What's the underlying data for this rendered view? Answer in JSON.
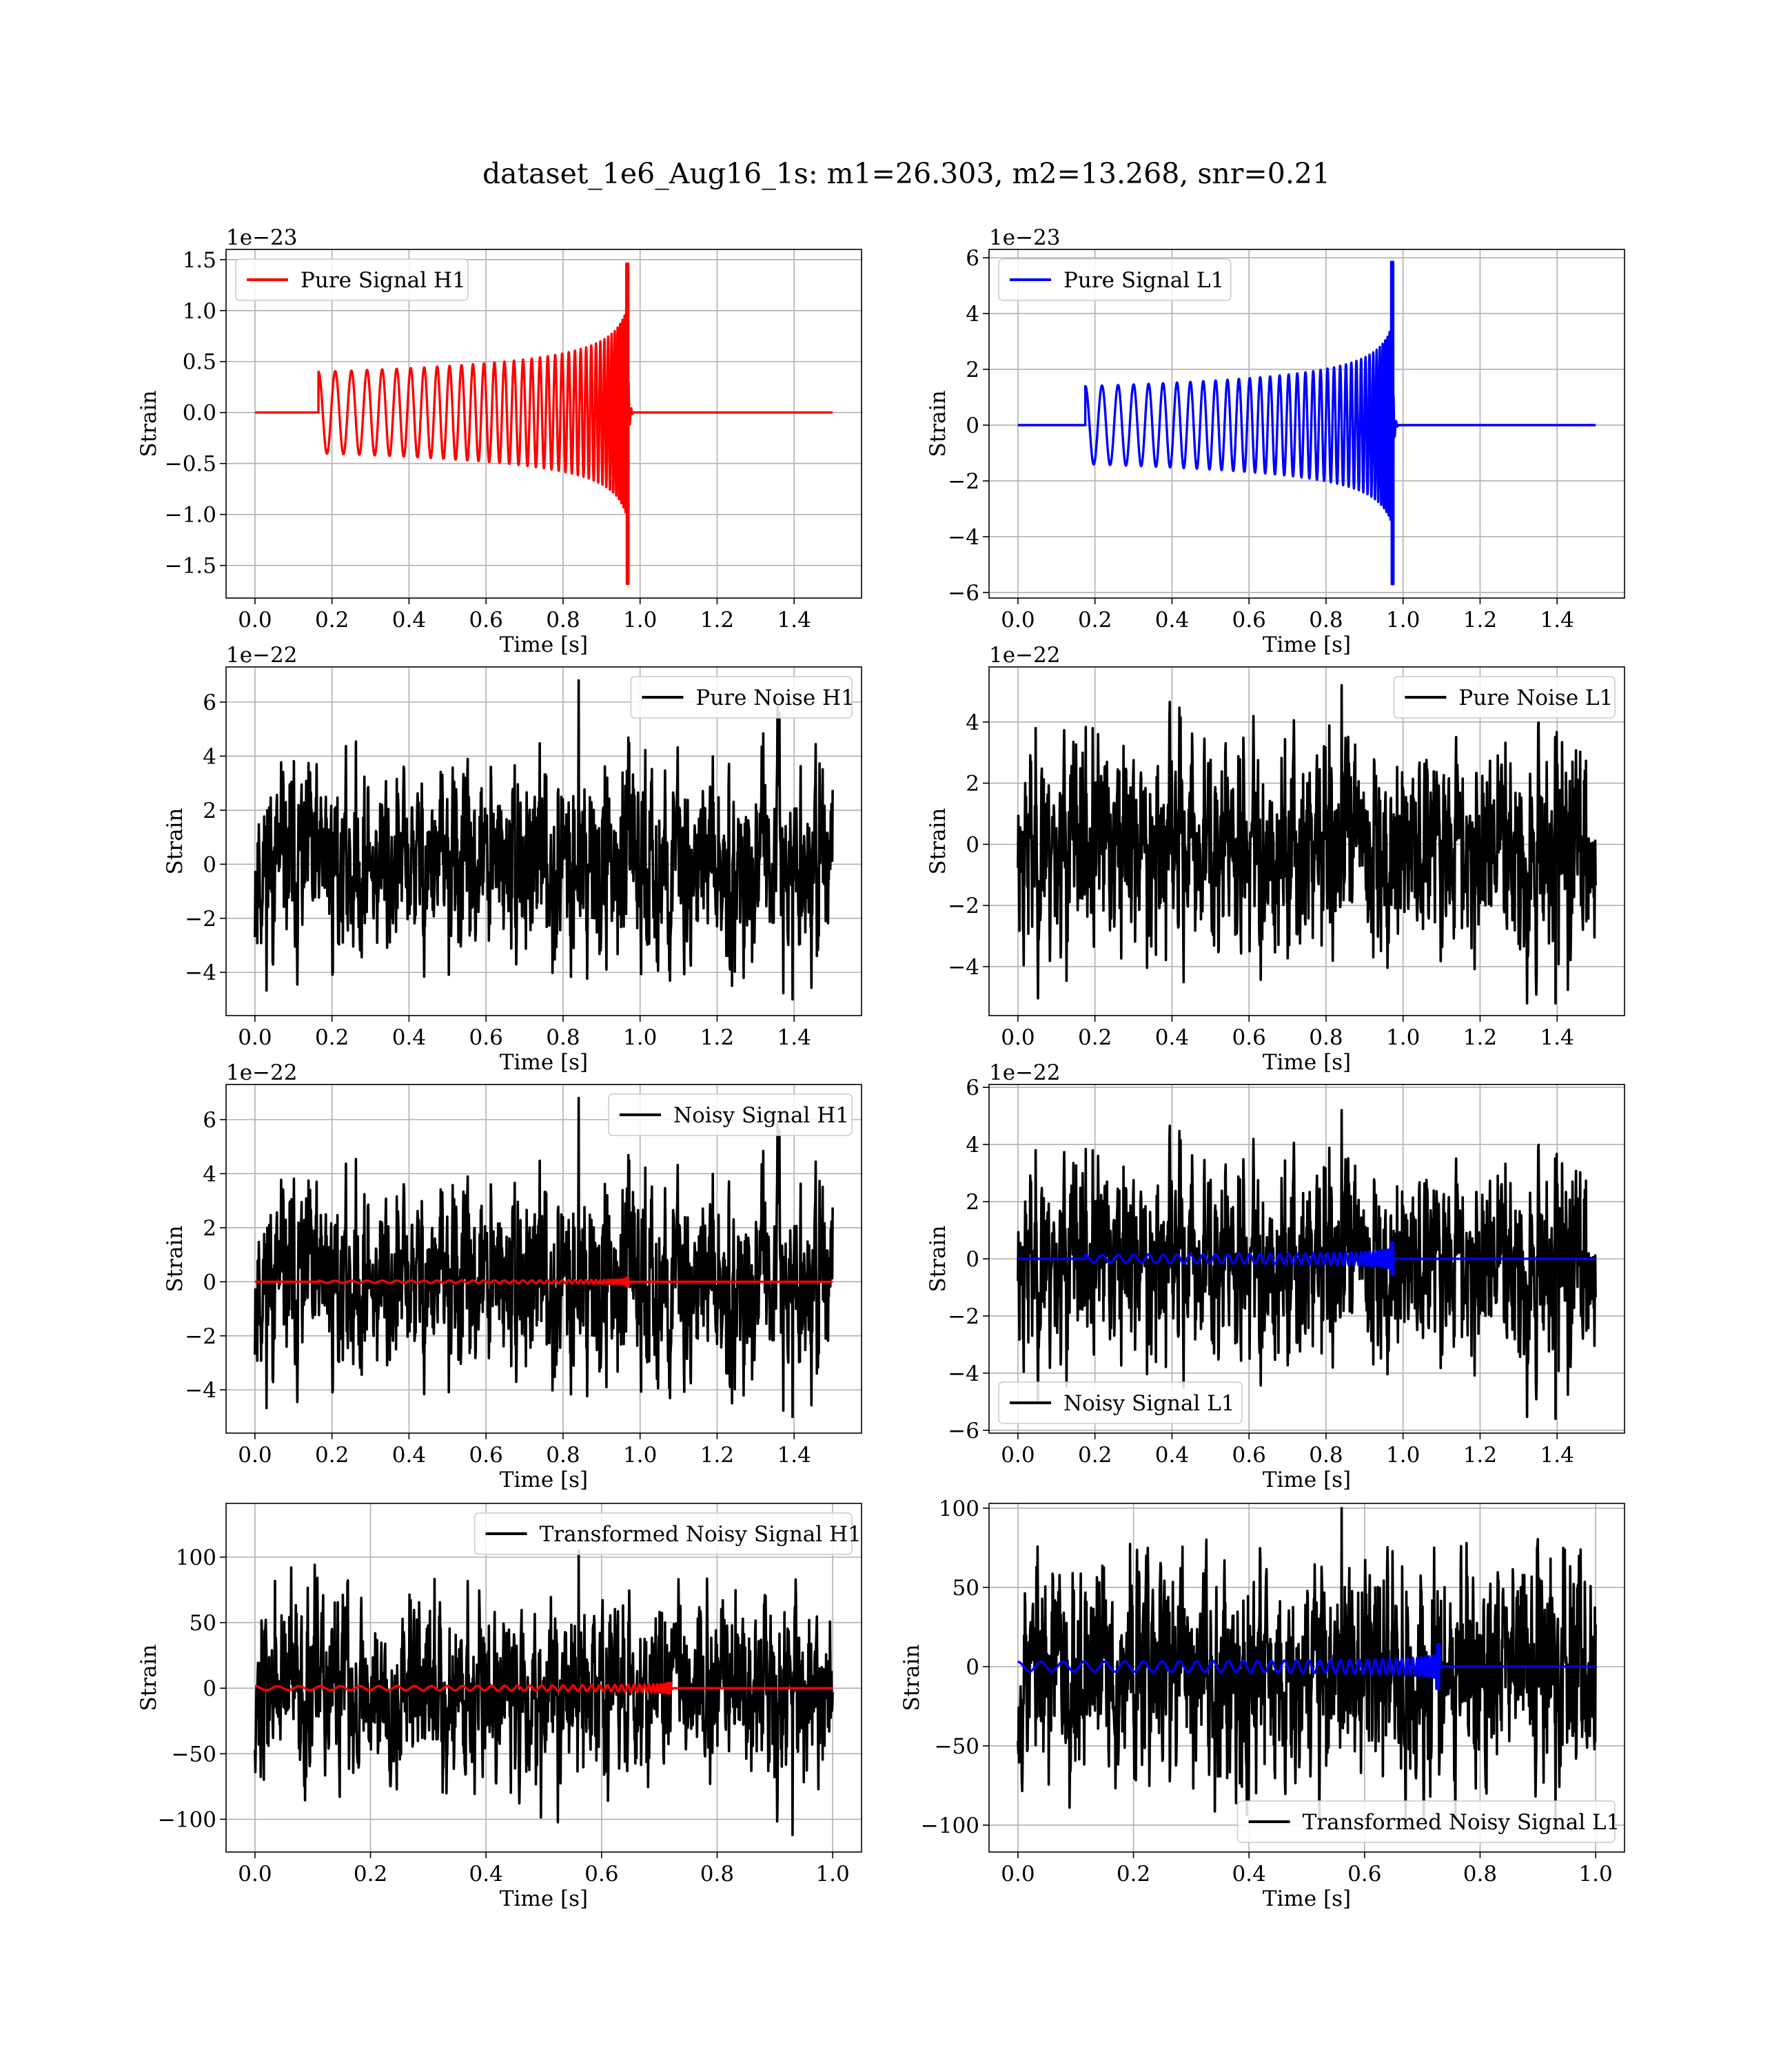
{
  "title": "dataset_1e6_Aug16_1s: m1=26.303, m2=13.268, snr=0.21",
  "colors": {
    "h1_signal": "#ff0000",
    "l1_signal": "#0000ff",
    "noise": "#000000",
    "grid": "#b0b0b0"
  },
  "chart_data": [
    {
      "id": "pure-signal-h1",
      "type": "line",
      "xlabel": "Time [s]",
      "ylabel": "Strain",
      "offset_label": "1e−23",
      "xlim": [
        -0.075,
        1.575
      ],
      "ylim": [
        -1.82,
        1.6
      ],
      "xticks": [
        0.0,
        0.2,
        0.4,
        0.6,
        0.8,
        1.0,
        1.2,
        1.4
      ],
      "xtick_labels": [
        "0.0",
        "0.2",
        "0.4",
        "0.6",
        "0.8",
        "1.0",
        "1.2",
        "1.4"
      ],
      "yticks": [
        -1.5,
        -1.0,
        -0.5,
        0.0,
        0.5,
        1.0,
        1.5
      ],
      "ytick_labels": [
        "−1.5",
        "−1.0",
        "−0.5",
        "0.0",
        "0.5",
        "1.0",
        "1.5"
      ],
      "grid": true,
      "legend_position": "upper-left",
      "series": [
        {
          "name": "Pure Signal H1",
          "color": "#ff0000",
          "kind": "chirp",
          "x_start": 0.0,
          "x_end": 1.5,
          "t_on": 0.165,
          "t_merge": 0.97,
          "amplitude": 0.4,
          "peak_max": 1.46,
          "peak_min": -1.68
        }
      ]
    },
    {
      "id": "pure-signal-l1",
      "type": "line",
      "xlabel": "Time [s]",
      "ylabel": "Strain",
      "offset_label": "1e−23",
      "xlim": [
        -0.075,
        1.575
      ],
      "ylim": [
        -6.2,
        6.3
      ],
      "xticks": [
        0.0,
        0.2,
        0.4,
        0.6,
        0.8,
        1.0,
        1.2,
        1.4
      ],
      "xtick_labels": [
        "0.0",
        "0.2",
        "0.4",
        "0.6",
        "0.8",
        "1.0",
        "1.2",
        "1.4"
      ],
      "yticks": [
        -6,
        -4,
        -2,
        0,
        2,
        4,
        6
      ],
      "ytick_labels": [
        "−6",
        "−4",
        "−2",
        "0",
        "2",
        "4",
        "6"
      ],
      "grid": true,
      "legend_position": "upper-left",
      "series": [
        {
          "name": "Pure Signal L1",
          "color": "#0000ff",
          "kind": "chirp",
          "x_start": 0.0,
          "x_end": 1.5,
          "t_on": 0.175,
          "t_merge": 0.975,
          "amplitude": 1.4,
          "peak_max": 5.85,
          "peak_min": -5.7
        }
      ]
    },
    {
      "id": "pure-noise-h1",
      "type": "line",
      "xlabel": "Time [s]",
      "ylabel": "Strain",
      "offset_label": "1e−22",
      "xlim": [
        -0.075,
        1.575
      ],
      "ylim": [
        -5.6,
        7.3
      ],
      "xticks": [
        0.0,
        0.2,
        0.4,
        0.6,
        0.8,
        1.0,
        1.2,
        1.4
      ],
      "xtick_labels": [
        "0.0",
        "0.2",
        "0.4",
        "0.6",
        "0.8",
        "1.0",
        "1.2",
        "1.4"
      ],
      "yticks": [
        -4,
        -2,
        0,
        2,
        4,
        6
      ],
      "ytick_labels": [
        "−4",
        "−2",
        "0",
        "2",
        "4",
        "6"
      ],
      "grid": true,
      "legend_position": "upper-right",
      "series": [
        {
          "name": "Pure Noise H1",
          "color": "#000000",
          "kind": "noise",
          "x_start": 0.0,
          "x_end": 1.5,
          "max": 6.8,
          "min": -5.0,
          "sigma": 1.5,
          "seed": 11
        }
      ]
    },
    {
      "id": "pure-noise-l1",
      "type": "line",
      "xlabel": "Time [s]",
      "ylabel": "Strain",
      "offset_label": "1e−22",
      "xlim": [
        -0.075,
        1.575
      ],
      "ylim": [
        -5.6,
        5.8
      ],
      "xticks": [
        0.0,
        0.2,
        0.4,
        0.6,
        0.8,
        1.0,
        1.2,
        1.4
      ],
      "xtick_labels": [
        "0.0",
        "0.2",
        "0.4",
        "0.6",
        "0.8",
        "1.0",
        "1.2",
        "1.4"
      ],
      "yticks": [
        -4,
        -2,
        0,
        2,
        4
      ],
      "ytick_labels": [
        "−4",
        "−2",
        "0",
        "2",
        "4"
      ],
      "grid": true,
      "legend_position": "upper-right",
      "series": [
        {
          "name": "Pure Noise L1",
          "color": "#000000",
          "kind": "noise",
          "x_start": 0.0,
          "x_end": 1.5,
          "max": 5.2,
          "min": -5.2,
          "sigma": 1.5,
          "seed": 23
        }
      ]
    },
    {
      "id": "noisy-signal-h1",
      "type": "line",
      "xlabel": "Time [s]",
      "ylabel": "Strain",
      "offset_label": "1e−22",
      "xlim": [
        -0.075,
        1.575
      ],
      "ylim": [
        -5.6,
        7.3
      ],
      "xticks": [
        0.0,
        0.2,
        0.4,
        0.6,
        0.8,
        1.0,
        1.2,
        1.4
      ],
      "xtick_labels": [
        "0.0",
        "0.2",
        "0.4",
        "0.6",
        "0.8",
        "1.0",
        "1.2",
        "1.4"
      ],
      "yticks": [
        -4,
        -2,
        0,
        2,
        4,
        6
      ],
      "ytick_labels": [
        "−4",
        "−2",
        "0",
        "2",
        "4",
        "6"
      ],
      "grid": true,
      "legend_position": "upper-right",
      "series": [
        {
          "name": "Noisy Signal H1",
          "color": "#000000",
          "kind": "noise",
          "x_start": 0.0,
          "x_end": 1.5,
          "max": 6.8,
          "min": -5.0,
          "sigma": 1.5,
          "seed": 11
        },
        {
          "name": "",
          "color": "#ff0000",
          "kind": "chirp",
          "x_start": 0.0,
          "x_end": 1.5,
          "t_on": 0.165,
          "t_merge": 0.97,
          "amplitude": 0.04,
          "peak_max": 0.15,
          "peak_min": -0.17
        }
      ]
    },
    {
      "id": "noisy-signal-l1",
      "type": "line",
      "xlabel": "Time [s]",
      "ylabel": "Strain",
      "offset_label": "1e−22",
      "xlim": [
        -0.075,
        1.575
      ],
      "ylim": [
        -6.1,
        6.1
      ],
      "xticks": [
        0.0,
        0.2,
        0.4,
        0.6,
        0.8,
        1.0,
        1.2,
        1.4
      ],
      "xtick_labels": [
        "0.0",
        "0.2",
        "0.4",
        "0.6",
        "0.8",
        "1.0",
        "1.2",
        "1.4"
      ],
      "yticks": [
        -6,
        -4,
        -2,
        0,
        2,
        4,
        6
      ],
      "ytick_labels": [
        "−6",
        "−4",
        "−2",
        "0",
        "2",
        "4",
        "6"
      ],
      "grid": true,
      "legend_position": "lower-left",
      "series": [
        {
          "name": "Noisy Signal L1",
          "color": "#000000",
          "kind": "noise",
          "x_start": 0.0,
          "x_end": 1.5,
          "max": 5.2,
          "min": -5.6,
          "sigma": 1.5,
          "seed": 23
        },
        {
          "name": "",
          "color": "#0000ff",
          "kind": "chirp",
          "x_start": 0.0,
          "x_end": 1.5,
          "t_on": 0.175,
          "t_merge": 0.975,
          "amplitude": 0.14,
          "peak_max": 0.58,
          "peak_min": -0.57
        }
      ]
    },
    {
      "id": "transformed-noisy-signal-h1",
      "type": "line",
      "xlabel": "Time [s]",
      "ylabel": "Strain",
      "offset_label": "",
      "xlim": [
        -0.05,
        1.05
      ],
      "ylim": [
        -125,
        141
      ],
      "xticks": [
        0.0,
        0.2,
        0.4,
        0.6,
        0.8,
        1.0
      ],
      "xtick_labels": [
        "0.0",
        "0.2",
        "0.4",
        "0.6",
        "0.8",
        "1.0"
      ],
      "yticks": [
        -100,
        -50,
        0,
        50,
        100
      ],
      "ytick_labels": [
        "−100",
        "−50",
        "0",
        "50",
        "100"
      ],
      "grid": true,
      "legend_position": "upper-right",
      "series": [
        {
          "name": "Transformed Noisy Signal H1",
          "color": "#000000",
          "kind": "noise",
          "x_start": 0.0,
          "x_end": 1.0,
          "max": 105,
          "min": -112,
          "sigma": 30,
          "seed": 37
        },
        {
          "name": "",
          "color": "#ff0000",
          "kind": "chirp",
          "x_start": 0.0,
          "x_end": 1.0,
          "t_on": 0.0,
          "t_merge": 0.72,
          "amplitude": 1.5,
          "peak_max": 4,
          "peak_min": -4
        }
      ]
    },
    {
      "id": "transformed-noisy-signal-l1",
      "type": "line",
      "xlabel": "Time [s]",
      "ylabel": "Strain",
      "offset_label": "",
      "xlim": [
        -0.05,
        1.05
      ],
      "ylim": [
        -117,
        103
      ],
      "xticks": [
        0.0,
        0.2,
        0.4,
        0.6,
        0.8,
        1.0
      ],
      "xtick_labels": [
        "0.0",
        "0.2",
        "0.4",
        "0.6",
        "0.8",
        "1.0"
      ],
      "yticks": [
        -100,
        -50,
        0,
        50,
        100
      ],
      "ytick_labels": [
        "−100",
        "−50",
        "0",
        "50",
        "100"
      ],
      "grid": true,
      "legend_position": "lower-right",
      "series": [
        {
          "name": "Transformed Noisy Signal L1",
          "color": "#000000",
          "kind": "noise",
          "x_start": 0.0,
          "x_end": 1.0,
          "max": 100,
          "min": -97,
          "sigma": 30,
          "seed": 53
        },
        {
          "name": "",
          "color": "#0000ff",
          "kind": "chirp",
          "x_start": 0.0,
          "x_end": 1.0,
          "t_on": 0.0,
          "t_merge": 0.73,
          "amplitude": 3,
          "peak_max": 14,
          "peak_min": -14
        }
      ]
    }
  ]
}
